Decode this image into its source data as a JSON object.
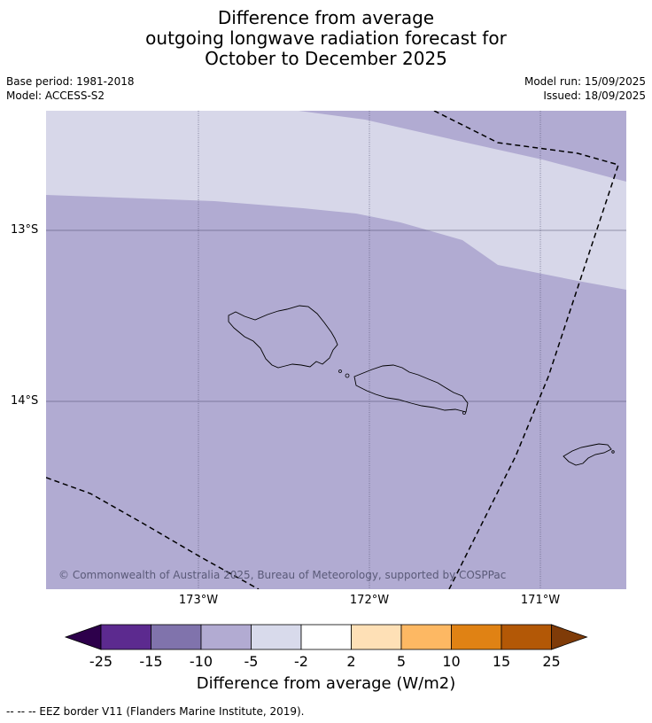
{
  "title": {
    "line1": "Difference from average",
    "line2": "outgoing longwave radiation forecast for",
    "line3": "October to December 2025"
  },
  "meta": {
    "base_period": "Base period: 1981-2018",
    "model": "Model: ACCESS-S2",
    "model_run": "Model run: 15/09/2025",
    "issued": "Issued: 18/09/2025"
  },
  "map": {
    "lat_labels": [
      "13°S",
      "14°S"
    ],
    "lon_labels": [
      "173°W",
      "172°W",
      "171°W"
    ],
    "copyright": "© Commonwealth of Australia 2025, Bureau of Meteorology, supported by COSPPac",
    "colors": {
      "band_minus5_minus2": "#d7d7e9",
      "band_minus10_minus5": "#b1abd2",
      "grid": "#4a4a6a",
      "coast": "#000000"
    }
  },
  "colorbar": {
    "ticks": [
      "-25",
      "-15",
      "-10",
      "-5",
      "-2",
      "2",
      "5",
      "10",
      "15",
      "25"
    ],
    "colors": [
      "#2d004b",
      "#5c2a8f",
      "#8073ac",
      "#b2abd2",
      "#d8daeb",
      "#ffffff",
      "#fee0b6",
      "#fdb863",
      "#e08214",
      "#b35806",
      "#7f3b08"
    ],
    "label": "Difference from average (W/m2)"
  },
  "footnote": "--  --  -- EEZ border V11 (Flanders Marine Institute, 2019)."
}
